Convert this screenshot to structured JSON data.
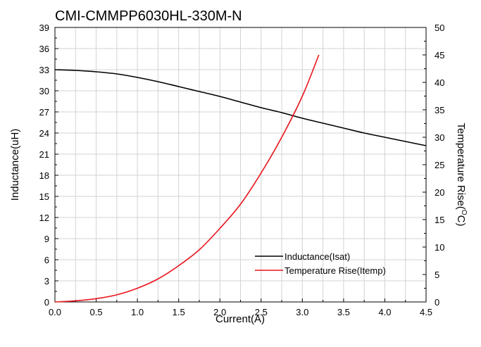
{
  "chart_data": {
    "type": "line",
    "title": "CMI-CMMPP6030HL-330M-N",
    "xlabel": "Current(A)",
    "ylabel": "Inductance(uH)",
    "y2label_main": "Temperature Rise(",
    "y2label_sup": "O",
    "y2label_tail": "C)",
    "xlim": [
      0,
      4.5
    ],
    "ylim": [
      0,
      39
    ],
    "y2lim": [
      0,
      50
    ],
    "grid": true,
    "legend_position": "bottom-right",
    "x_ticks": [
      "0.0",
      "0.5",
      "1.0",
      "1.5",
      "2.0",
      "2.5",
      "3.0",
      "3.5",
      "4.0",
      "4.5"
    ],
    "y_ticks": [
      "0",
      "3",
      "6",
      "9",
      "12",
      "15",
      "18",
      "21",
      "24",
      "27",
      "30",
      "33",
      "36",
      "39"
    ],
    "y2_ticks": [
      "0",
      "5",
      "10",
      "15",
      "20",
      "25",
      "30",
      "35",
      "40",
      "45",
      "50"
    ],
    "series": [
      {
        "name": "Inductance(Isat)",
        "axis": "left",
        "color": "#000000",
        "x": [
          0,
          0.25,
          0.5,
          0.75,
          1.0,
          1.25,
          1.5,
          1.75,
          2.0,
          2.25,
          2.5,
          2.75,
          3.0,
          3.25,
          3.5,
          3.75,
          4.0,
          4.25,
          4.5
        ],
        "y": [
          33.0,
          32.9,
          32.7,
          32.4,
          31.9,
          31.3,
          30.6,
          29.9,
          29.2,
          28.4,
          27.6,
          26.9,
          26.1,
          25.4,
          24.7,
          24.0,
          23.4,
          22.8,
          22.2
        ]
      },
      {
        "name": "Temperature Rise(Itemp)",
        "axis": "right",
        "color": "#e8141c",
        "x": [
          0,
          0.25,
          0.5,
          0.75,
          1.0,
          1.25,
          1.5,
          1.75,
          2.0,
          2.25,
          2.5,
          2.75,
          3.0,
          3.2
        ],
        "y": [
          0,
          0.2,
          0.6,
          1.3,
          2.5,
          4.2,
          6.6,
          9.5,
          13.4,
          17.8,
          23.5,
          30.0,
          37.5,
          45.0
        ]
      }
    ]
  }
}
